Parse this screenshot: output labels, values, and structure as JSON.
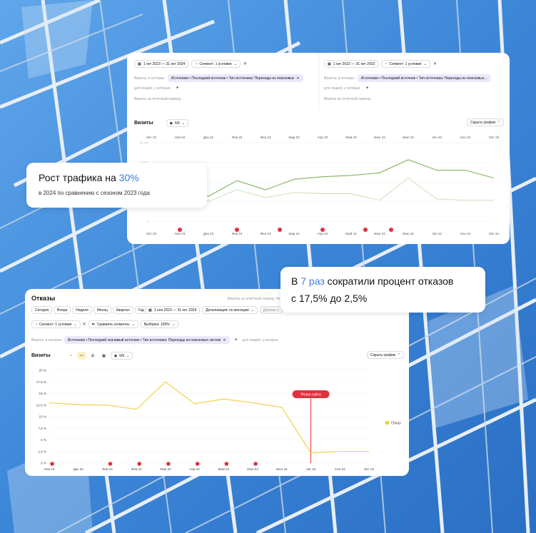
{
  "colors": {
    "green_dark": "#7fb35a",
    "green_light": "#c6deb2",
    "yellow": "#f2cc3a",
    "release_red": "#e0323c",
    "accent_blue": "#3a7be3"
  },
  "top_panel": {
    "left": {
      "date_range": "1 окт 2023 — 31 окт 2024",
      "segment": "Сегмент: 1 условие",
      "visits_where": "Визиты, в которых",
      "filter": "Источники • Последний источник • Тип источника: Переходы из поисковых",
      "for_people": "для людей, у которых",
      "period": "Визиты за отчётный период:"
    },
    "right": {
      "date_range": "1 окт 2022 — 31 окт 2023",
      "segment": "Сегмент: 1 условие",
      "visits_where": "Визиты, в которых",
      "filter": "Источники • Последний источник • Тип источника: Переходы из поисковых...",
      "for_people": "для людей, у которых",
      "period": "Визиты за отчётный период:"
    },
    "metric_label": "Визиты",
    "series_count": "6/6",
    "hide_chart": "Скрыть график",
    "y_ticks": [
      "30 000",
      "20 000",
      "10 000",
      "5 000",
      "0"
    ]
  },
  "callout_traffic": {
    "head": "Рост трафика на ",
    "value": "30%",
    "sub": "в 2024 по сравнению с сезоном 2023 года"
  },
  "callout_bounce": {
    "line1_pre": "В ",
    "line1_value": "7 раз",
    "line1_post": " сократили процент отказов",
    "line2": "с 17,5% до 2,5%"
  },
  "bottom_panel": {
    "title": "Отказы",
    "period_note": "Визиты за отчётный период: Не выбрано",
    "periods": [
      "Сегодня",
      "Вчера",
      "Неделя",
      "Месяц",
      "Квартал",
      "Год"
    ],
    "date_range": "1 ноя 2023 — 31 окт 2024",
    "detail": "Детализация: по месяцам",
    "data_label": "Данные с",
    "segment": "Сегмент: 1 условие",
    "compare": "Сравнить сегменты",
    "sample": "Выборка: 100%",
    "visits_where": "Визиты, в которых",
    "filter": "Источники • Последний значимый источник • Тип источника: Переходы из поисковых систем",
    "for_people": "для людей, у которых",
    "metric_label": "Визиты",
    "series_count": "6/6",
    "hide_chart": "Скрыть график",
    "legend": "Отказ",
    "release_label": "Релиз сайта"
  },
  "chart_data": [
    {
      "type": "line",
      "title": "",
      "x": [
        "Окт 22",
        "Ноя 22",
        "Дек 22",
        "Янв 23",
        "Фев 23",
        "Мар 23",
        "Апр 23",
        "Май 23",
        "Июн 23",
        "Июл 23",
        "Авг 23",
        "Сен 23",
        "Окт 23"
      ],
      "x_secondary": [
        "Окт 23",
        "Ноя 23",
        "Дек 23",
        "Янв 24",
        "Фев 24",
        "Мар 24",
        "Апр 24",
        "Май 24",
        "Июн 24",
        "Июл 24",
        "Авг 24",
        "Сен 24",
        "Окт 24"
      ],
      "ylim": [
        0,
        30000
      ],
      "series": [
        {
          "values": [
            20000,
            15000,
            9500,
            15500,
            12000,
            16000,
            17000,
            17500,
            18500,
            23500,
            19500,
            19500,
            16500
          ]
        },
        {
          "values": [
            20000,
            15000,
            7500,
            12000,
            9000,
            11000,
            10500,
            10500,
            8000,
            16500,
            8500,
            8000,
            8000
          ]
        }
      ]
    },
    {
      "type": "line",
      "title": "",
      "x": [
        "Ноя 23",
        "Дек 23",
        "Янв 24",
        "Фев 24",
        "Мар 24",
        "Апр 24",
        "Май 24",
        "Июн 24",
        "Июл 24",
        "Авг 24",
        "Сен 24",
        "Окт 24"
      ],
      "y_ticks": [
        "0 %",
        "2.5 %",
        "5 %",
        "7.5 %",
        "10 %",
        "12.5 %",
        "15 %",
        "17.5 %",
        "20 %"
      ],
      "ylim": [
        0,
        20
      ],
      "series": [
        {
          "name": "Отказ",
          "values": [
            13,
            12.6,
            12.5,
            11.6,
            17.5,
            12.8,
            13.8,
            13,
            12,
            2.2,
            2.5,
            2.5
          ]
        }
      ],
      "legend": "right"
    }
  ]
}
